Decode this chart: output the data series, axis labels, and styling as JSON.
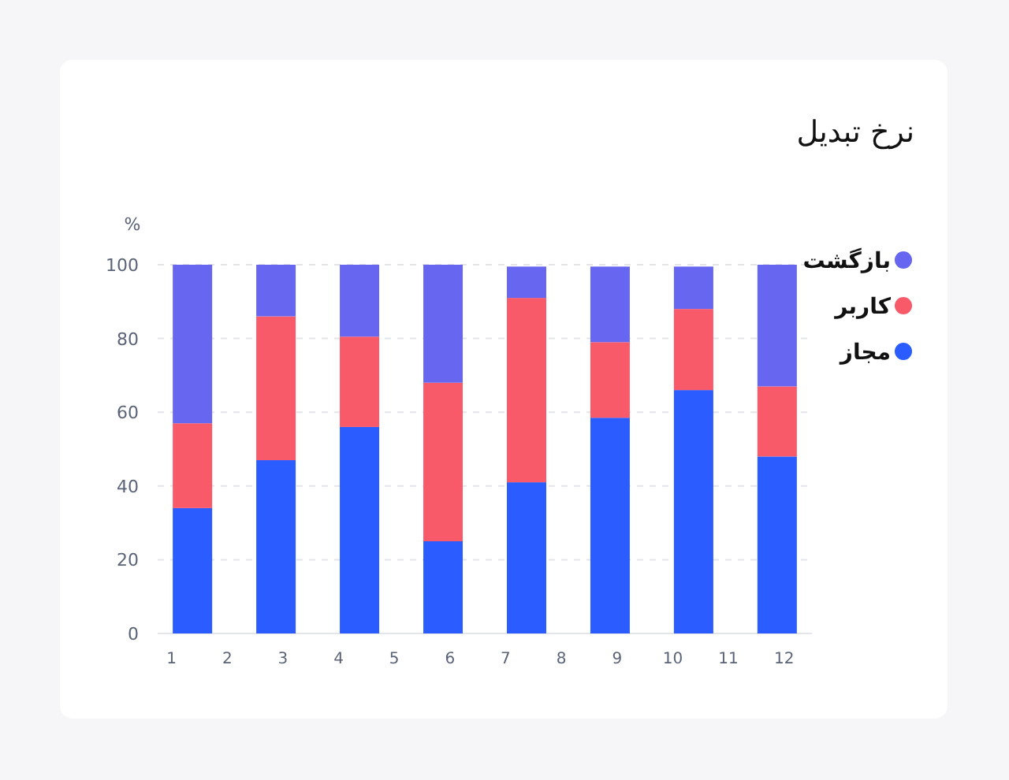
{
  "chart_data": {
    "type": "bar",
    "stacked": true,
    "title": "نرخ تبدیل",
    "ylabel": "%",
    "x": [
      1.375,
      2.875,
      4.375,
      5.875,
      7.375,
      8.875,
      10.375,
      11.875
    ],
    "xlim": [
      0.75,
      12.5
    ],
    "xticks": [
      1,
      2,
      3,
      4,
      5,
      6,
      7,
      8,
      9,
      10,
      11,
      12
    ],
    "ylim": [
      0,
      100
    ],
    "yticks": [
      0,
      20,
      40,
      60,
      80,
      100
    ],
    "grid": "y",
    "legend": "top right",
    "series": [
      {
        "name": "مجاز",
        "color": "#2b5cff",
        "values": [
          34,
          47,
          56,
          25,
          41,
          58.5,
          66,
          48
        ]
      },
      {
        "name": "کاربر",
        "color": "#f85a6a",
        "values": [
          23,
          39,
          24.5,
          43,
          50,
          20.5,
          22,
          19
        ]
      },
      {
        "name": "بازگشت",
        "color": "#6666f0",
        "values": [
          43,
          14,
          19.5,
          32,
          8.5,
          20.5,
          11.5,
          33
        ]
      }
    ]
  }
}
